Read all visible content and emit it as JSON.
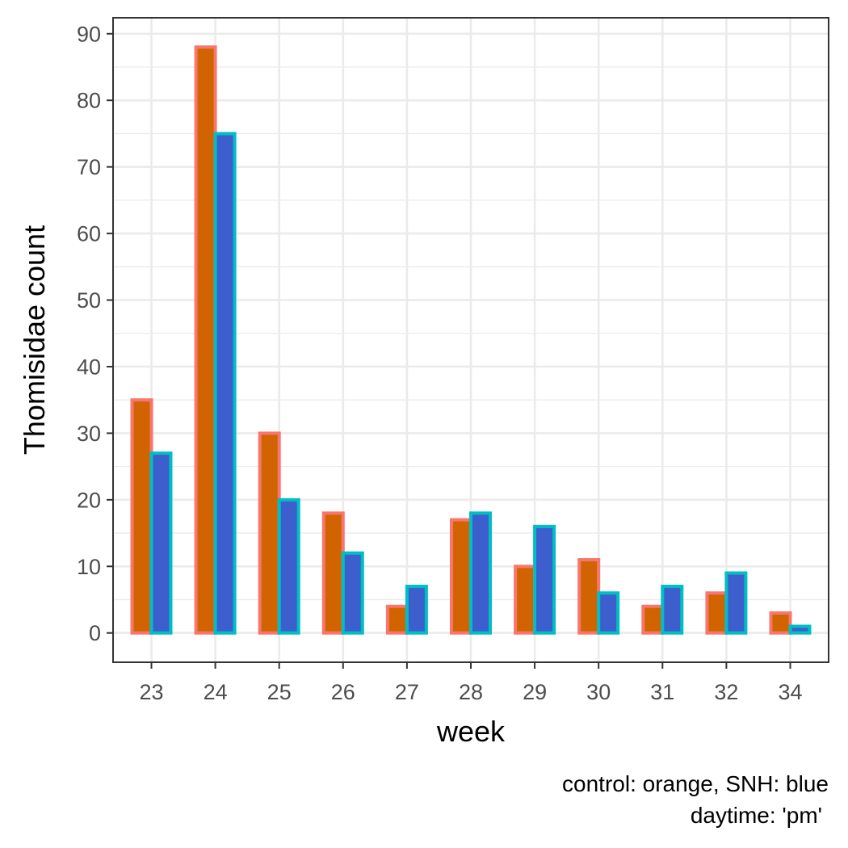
{
  "chart_data": {
    "type": "bar",
    "xlabel": "week",
    "ylabel": "Thomisidae count",
    "categories": [
      "23",
      "24",
      "25",
      "26",
      "27",
      "28",
      "29",
      "30",
      "31",
      "32",
      "34"
    ],
    "series": [
      {
        "values": [
          35,
          88,
          30,
          18,
          4,
          17,
          10,
          11,
          4,
          6,
          3
        ],
        "fill": "#D16400",
        "stroke": "#F8766D"
      },
      {
        "values": [
          27,
          75,
          20,
          12,
          7,
          18,
          16,
          6,
          7,
          9,
          1
        ],
        "fill": "#3C5FCD",
        "stroke": "#00BFC4"
      }
    ],
    "ylim": [
      -4.4,
      92.4
    ],
    "yticks": [
      0,
      10,
      20,
      30,
      40,
      50,
      60,
      70,
      80,
      90
    ],
    "grid": true,
    "caption": [
      "control: orange, SNH: blue",
      "daytime: 'pm'"
    ]
  }
}
